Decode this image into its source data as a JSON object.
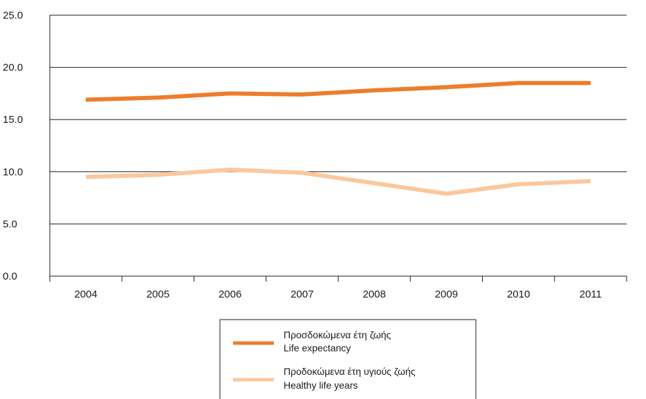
{
  "chart_data": {
    "type": "line",
    "categories": [
      "2004",
      "2005",
      "2006",
      "2007",
      "2008",
      "2009",
      "2010",
      "2011"
    ],
    "ylim": [
      0,
      25
    ],
    "y_ticks": [
      "0.0",
      "5.0",
      "10.0",
      "15.0",
      "20.0",
      "25.0"
    ],
    "grid": true,
    "legend_position": "bottom",
    "series": [
      {
        "name": "Προσδοκώμενα έτη ζωής",
        "name_en": "Life expectancy",
        "color": "#ee7d2b",
        "values": [
          16.9,
          17.1,
          17.5,
          17.4,
          17.8,
          18.1,
          18.5,
          18.5
        ]
      },
      {
        "name": "Προδοκώμενα έτη υγιούς ζωής",
        "name_en": "Healthy life years",
        "color": "#fbc79d",
        "values": [
          9.5,
          9.7,
          10.2,
          9.9,
          8.9,
          7.9,
          8.8,
          9.1
        ]
      }
    ]
  }
}
